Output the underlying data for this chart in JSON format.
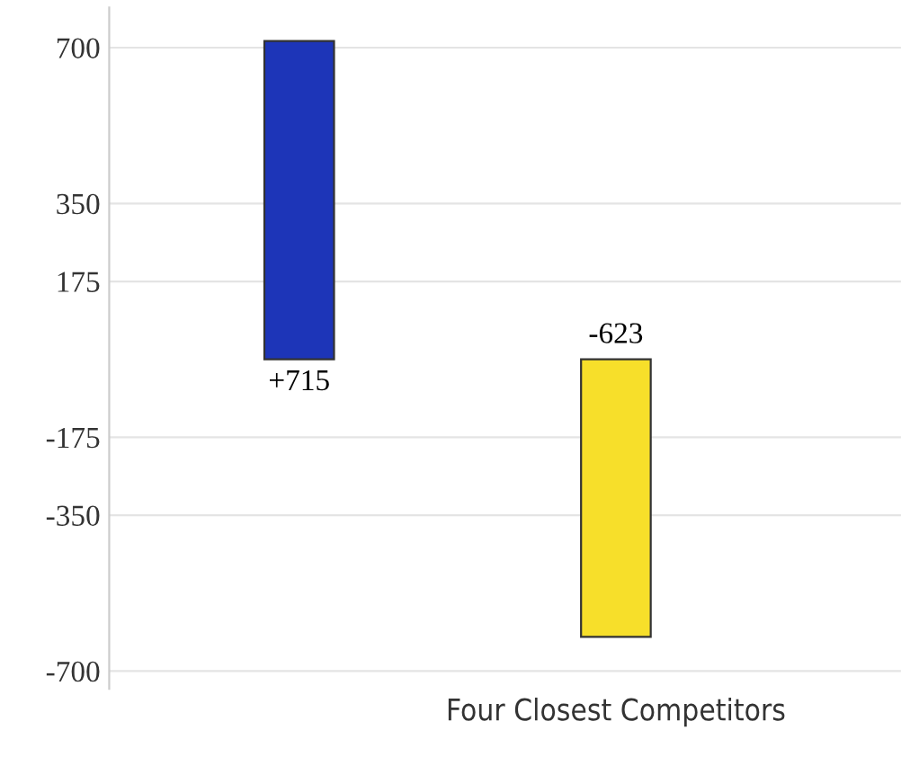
{
  "chart_data": {
    "type": "bar",
    "categories": [
      null,
      "Four Closest Competitors"
    ],
    "values": [
      715,
      -623
    ],
    "colors": [
      "#1d35b8",
      "#f7df2a"
    ],
    "value_labels": [
      "+715",
      "-623"
    ],
    "ylim": [
      -740,
      790
    ],
    "yticks": [
      700,
      350,
      175,
      -175,
      -350,
      -700
    ],
    "grid": "y"
  }
}
